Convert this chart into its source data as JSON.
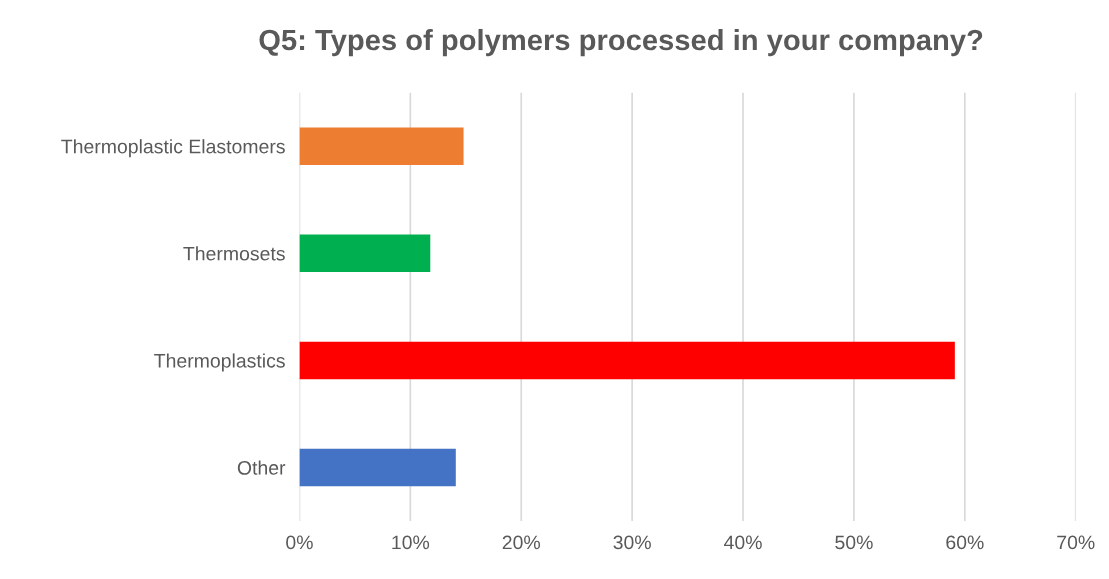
{
  "chart_data": {
    "type": "bar",
    "orientation": "horizontal",
    "title": "Q5: Types of polymers processed in your company?",
    "categories": [
      "Thermoplastic Elastomers",
      "Thermosets",
      "Thermoplastics",
      "Other"
    ],
    "values": [
      14.8,
      11.8,
      59.1,
      14.1
    ],
    "colors": [
      "#ed7d31",
      "#00b050",
      "#ff0000",
      "#4472c4"
    ],
    "xlim": [
      0,
      70
    ],
    "xticks": [
      {
        "value": 0,
        "label": "0%"
      },
      {
        "value": 10,
        "label": "10%"
      },
      {
        "value": 20,
        "label": "20%"
      },
      {
        "value": 30,
        "label": "30%"
      },
      {
        "value": 40,
        "label": "40%"
      },
      {
        "value": 50,
        "label": "50%"
      },
      {
        "value": 60,
        "label": "60%"
      },
      {
        "value": 70,
        "label": "70%"
      }
    ],
    "grid": "x"
  }
}
